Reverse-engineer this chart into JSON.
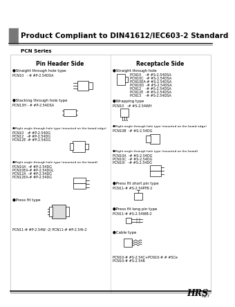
{
  "title": "Product Compliant to DIN41612/IEC603-2 Standard",
  "subtitle": "PCN Series",
  "bg_color": "#ffffff",
  "gray_block_color": "#888888",
  "border_color": "#cccccc",
  "pin_header_title": "Pin Header Side",
  "receptacle_title": "Receptacle Side",
  "footer_hrs": "HRS",
  "footer_page": "A27",
  "header_line_color": "#333333",
  "content_border": "#bbbbbb",
  "divider_color": "#cccccc",
  "text_color": "#000000",
  "label_fontsize": 4.0,
  "part_fontsize": 3.5,
  "small_fontsize": 3.2
}
